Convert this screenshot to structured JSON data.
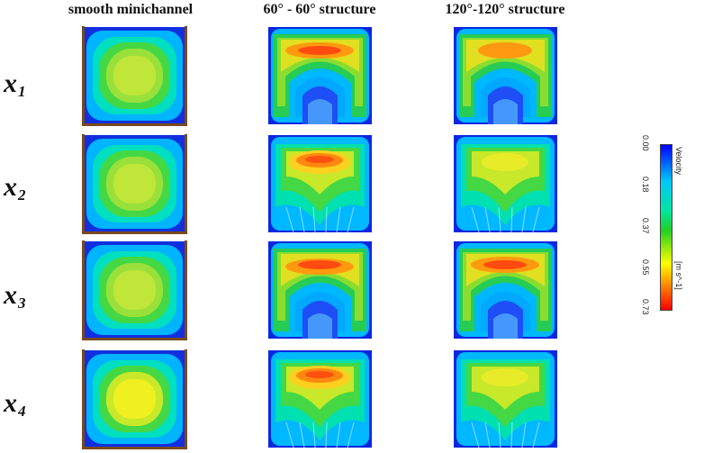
{
  "columns": {
    "smooth": "smooth minichannel",
    "s60": "60° - 60° structure",
    "s120": "120°-120° structure"
  },
  "rows": [
    {
      "var": "x",
      "sub": "1"
    },
    {
      "var": "x",
      "sub": "2"
    },
    {
      "var": "x",
      "sub": "3"
    },
    {
      "var": "x",
      "sub": "4"
    }
  ],
  "colorbar": {
    "title": "Velocity",
    "unit": "[m s^-1]",
    "ticks": [
      "0.00",
      "0.18",
      "0.37",
      "0.55",
      "0.73"
    ],
    "min": 0.0,
    "max": 0.73,
    "colors": [
      "#0000ff",
      "#00c8ff",
      "#00e6a0",
      "#22d022",
      "#ffff00",
      "#ff8000",
      "#ff0000"
    ]
  }
}
